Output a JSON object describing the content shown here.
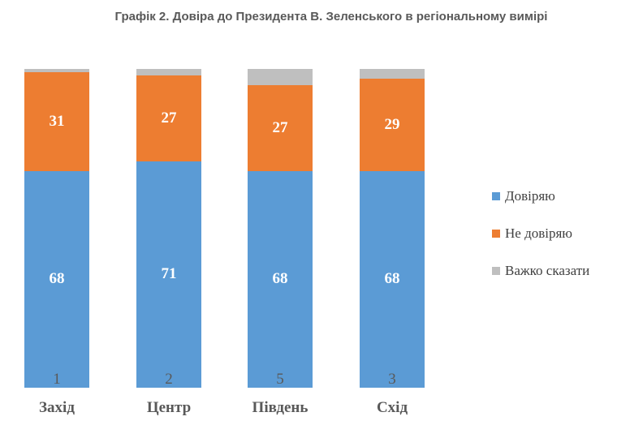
{
  "chart_data": {
    "type": "bar",
    "stacked": true,
    "title": "Графік 2. Довіра до Президента В. Зеленського в регіональному вимірі",
    "categories": [
      "Захід",
      "Центр",
      "Південь",
      "Схід"
    ],
    "series": [
      {
        "name": "Довіряю",
        "color": "#5B9BD5",
        "label_color": "#ffffff",
        "values": [
          68,
          71,
          68,
          68
        ]
      },
      {
        "name": "Не довіряю",
        "color": "#ED7D31",
        "label_color": "#ffffff",
        "values": [
          31,
          27,
          27,
          29
        ]
      },
      {
        "name": "Важко сказати",
        "color": "#BFBFBF",
        "label_color": "#595959",
        "values": [
          1,
          2,
          5,
          3
        ]
      }
    ],
    "legend_position": "right",
    "grid": false
  }
}
